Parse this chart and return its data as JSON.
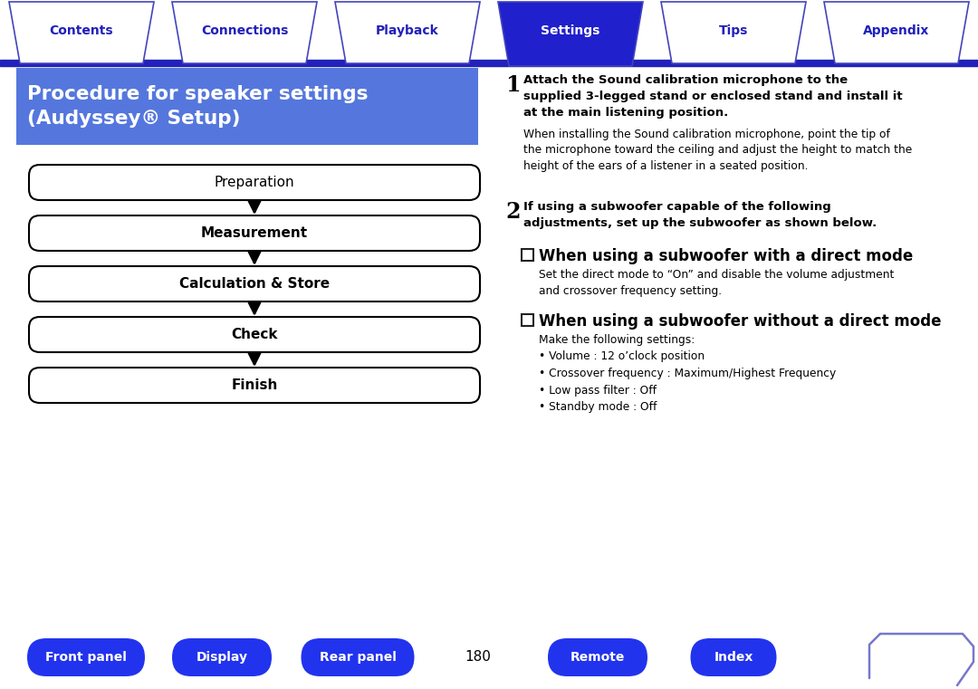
{
  "bg_color": "#ffffff",
  "tab_labels": [
    "Contents",
    "Connections",
    "Playback",
    "Settings",
    "Tips",
    "Appendix"
  ],
  "active_tab": "Settings",
  "active_tab_color": "#2020cc",
  "inactive_tab_color": "#ffffff",
  "inactive_tab_text_color": "#2020bb",
  "active_tab_text_color": "#ffffff",
  "tab_border_color": "#4444bb",
  "tab_bar_line_color": "#2222bb",
  "title_bg_color": "#5577dd",
  "title_text_color": "#ffffff",
  "flow_steps": [
    "Preparation",
    "Measurement",
    "Calculation & Store",
    "Check",
    "Finish"
  ],
  "flow_bold": [
    false,
    true,
    true,
    true,
    true
  ],
  "step1_bold": "Attach the Sound calibration microphone to the\nsupplied 3-legged stand or enclosed stand and install it\nat the main listening position.",
  "step1_normal": "When installing the Sound calibration microphone, point the tip of\nthe microphone toward the ceiling and adjust the height to match the\nheight of the ears of a listener in a seated position.",
  "step2_bold": "If using a subwoofer capable of the following\nadjustments, set up the subwoofer as shown below.",
  "sub1_title": "When using a subwoofer with a direct mode",
  "sub1_text": "Set the direct mode to “On” and disable the volume adjustment\nand crossover frequency setting.",
  "sub2_title": "When using a subwoofer without a direct mode",
  "sub2_text_lines": [
    "Make the following settings:",
    "• Volume : 12 o’clock position",
    "• Crossover frequency : Maximum/Highest Frequency",
    "• Low pass filter : Off",
    "• Standby mode : Off"
  ],
  "bottom_buttons": [
    "Front panel",
    "Display",
    "Rear panel",
    "Remote",
    "Index"
  ],
  "bottom_button_color": "#2233ee",
  "bottom_page_number": "180"
}
